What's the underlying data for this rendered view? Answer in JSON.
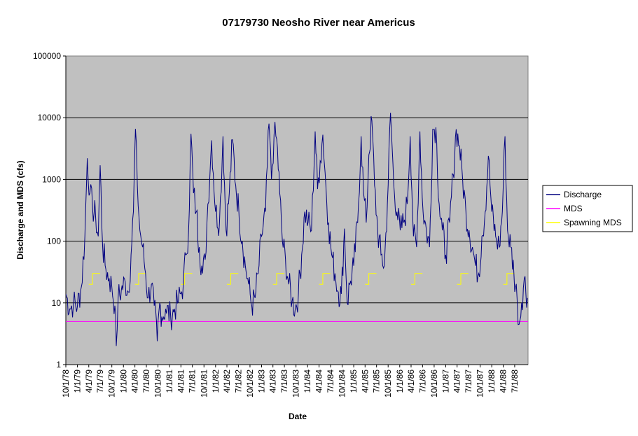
{
  "chart_data": {
    "type": "line",
    "title": "07179730 Neosho River near Americus",
    "xlabel": "Date",
    "ylabel": "Discharge and MDS (cfs)",
    "y_scale": "log",
    "ylim": [
      1,
      100000
    ],
    "y_ticks": [
      "1",
      "10",
      "100",
      "1000",
      "10000",
      "100000"
    ],
    "x_ticks": [
      "10/1/78",
      "1/1/79",
      "4/1/79",
      "7/1/79",
      "10/1/79",
      "1/1/80",
      "4/1/80",
      "7/1/80",
      "10/1/80",
      "1/1/81",
      "4/1/81",
      "7/1/81",
      "10/1/81",
      "1/1/82",
      "4/1/82",
      "7/1/82",
      "10/1/82",
      "1/1/83",
      "4/1/83",
      "7/1/83",
      "10/1/83",
      "1/1/84",
      "4/1/84",
      "7/1/84",
      "10/1/84",
      "1/1/85",
      "4/1/85",
      "7/1/85",
      "10/1/85",
      "1/1/86",
      "4/1/86",
      "7/1/86",
      "10/1/86",
      "1/1/87",
      "4/1/87",
      "7/1/87",
      "10/1/87",
      "1/1/88",
      "4/1/88",
      "7/1/88"
    ],
    "xlim": [
      "1978-10-01",
      "1988-10-15"
    ],
    "plot_background": "#c0c0c0",
    "grid": "horizontal",
    "legend_position": "right",
    "series": [
      {
        "name": "Discharge",
        "color": "#000080",
        "points": [
          [
            "1978-10-01",
            14
          ],
          [
            "1978-11-01",
            8
          ],
          [
            "1978-12-01",
            10
          ],
          [
            "1979-01-01",
            9
          ],
          [
            "1979-02-01",
            18
          ],
          [
            "1979-03-01",
            120
          ],
          [
            "1979-03-20",
            2200
          ],
          [
            "1979-04-10",
            600
          ],
          [
            "1979-05-01",
            350
          ],
          [
            "1979-05-25",
            250
          ],
          [
            "1979-06-15",
            120
          ],
          [
            "1979-06-30",
            1700
          ],
          [
            "1979-07-20",
            80
          ],
          [
            "1979-08-15",
            35
          ],
          [
            "1979-09-10",
            25
          ],
          [
            "1979-10-01",
            18
          ],
          [
            "1979-10-25",
            9
          ],
          [
            "1979-11-05",
            2
          ],
          [
            "1979-11-20",
            12
          ],
          [
            "1979-12-15",
            16
          ],
          [
            "1980-01-15",
            22
          ],
          [
            "1980-02-10",
            15
          ],
          [
            "1980-03-01",
            60
          ],
          [
            "1980-03-20",
            300
          ],
          [
            "1980-04-05",
            6600
          ],
          [
            "1980-04-20",
            800
          ],
          [
            "1980-05-10",
            150
          ],
          [
            "1980-06-01",
            80
          ],
          [
            "1980-06-25",
            30
          ],
          [
            "1980-07-15",
            12
          ],
          [
            "1980-08-10",
            20
          ],
          [
            "1980-09-01",
            9
          ],
          [
            "1980-09-25",
            2.4
          ],
          [
            "1980-10-15",
            10
          ],
          [
            "1980-11-01",
            6
          ],
          [
            "1980-12-01",
            8
          ],
          [
            "1981-01-10",
            6
          ],
          [
            "1981-02-10",
            8
          ],
          [
            "1981-03-05",
            10
          ],
          [
            "1981-04-01",
            14
          ],
          [
            "1981-04-20",
            20
          ],
          [
            "1981-05-10",
            60
          ],
          [
            "1981-06-01",
            150
          ],
          [
            "1981-06-20",
            5500
          ],
          [
            "1981-07-10",
            600
          ],
          [
            "1981-08-01",
            300
          ],
          [
            "1981-08-25",
            80
          ],
          [
            "1981-09-20",
            30
          ],
          [
            "1981-10-10",
            50
          ],
          [
            "1981-11-01",
            400
          ],
          [
            "1981-12-01",
            4300
          ],
          [
            "1982-01-01",
            300
          ],
          [
            "1982-02-01",
            200
          ],
          [
            "1982-03-01",
            5000
          ],
          [
            "1982-03-25",
            150
          ],
          [
            "1982-04-20",
            600
          ],
          [
            "1982-05-15",
            4400
          ],
          [
            "1982-06-10",
            800
          ],
          [
            "1982-07-05",
            300
          ],
          [
            "1982-08-01",
            100
          ],
          [
            "1982-08-25",
            40
          ],
          [
            "1982-09-20",
            20
          ],
          [
            "1982-10-15",
            9
          ],
          [
            "1982-11-10",
            12
          ],
          [
            "1982-12-05",
            30
          ],
          [
            "1983-01-01",
            120
          ],
          [
            "1983-02-01",
            300
          ],
          [
            "1983-03-01",
            8000
          ],
          [
            "1983-03-20",
            1000
          ],
          [
            "1983-04-10",
            5200
          ],
          [
            "1983-05-01",
            4500
          ],
          [
            "1983-05-25",
            600
          ],
          [
            "1983-06-15",
            100
          ],
          [
            "1983-07-10",
            50
          ],
          [
            "1983-08-05",
            20
          ],
          [
            "1983-09-01",
            11
          ],
          [
            "1983-09-25",
            8
          ],
          [
            "1983-10-20",
            14
          ],
          [
            "1983-11-15",
            60
          ],
          [
            "1983-12-10",
            300
          ],
          [
            "1984-01-05",
            200
          ],
          [
            "1984-02-01",
            150
          ],
          [
            "1984-03-01",
            6000
          ],
          [
            "1984-03-20",
            700
          ],
          [
            "1984-04-10",
            2000
          ],
          [
            "1984-05-01",
            5300
          ],
          [
            "1984-05-25",
            800
          ],
          [
            "1984-06-15",
            200
          ],
          [
            "1984-07-10",
            60
          ],
          [
            "1984-08-05",
            30
          ],
          [
            "1984-09-01",
            15
          ],
          [
            "1984-09-25",
            14
          ],
          [
            "1984-10-20",
            160
          ],
          [
            "1984-11-10",
            10
          ],
          [
            "1984-12-01",
            20
          ],
          [
            "1985-01-01",
            40
          ],
          [
            "1985-02-01",
            200
          ],
          [
            "1985-03-01",
            5000
          ],
          [
            "1985-03-20",
            600
          ],
          [
            "1985-04-10",
            200
          ],
          [
            "1985-05-01",
            2500
          ],
          [
            "1985-05-25",
            9000
          ],
          [
            "1985-06-15",
            800
          ],
          [
            "1985-07-10",
            150
          ],
          [
            "1985-08-05",
            60
          ],
          [
            "1985-09-01",
            40
          ],
          [
            "1985-09-25",
            400
          ],
          [
            "1985-10-20",
            12000
          ],
          [
            "1985-11-15",
            800
          ],
          [
            "1985-12-10",
            300
          ],
          [
            "1986-01-05",
            150
          ],
          [
            "1986-02-01",
            200
          ],
          [
            "1986-03-01",
            400
          ],
          [
            "1986-03-25",
            5000
          ],
          [
            "1986-04-20",
            120
          ],
          [
            "1986-05-15",
            80
          ],
          [
            "1986-06-10",
            6000
          ],
          [
            "1986-07-05",
            300
          ],
          [
            "1986-08-01",
            150
          ],
          [
            "1986-08-25",
            80
          ],
          [
            "1986-09-20",
            6500
          ],
          [
            "1986-10-15",
            7000
          ],
          [
            "1986-11-10",
            400
          ],
          [
            "1986-12-05",
            150
          ],
          [
            "1987-01-01",
            60
          ],
          [
            "1987-02-01",
            200
          ],
          [
            "1987-03-01",
            1200
          ],
          [
            "1987-03-25",
            6500
          ],
          [
            "1987-04-20",
            3500
          ],
          [
            "1987-05-15",
            1000
          ],
          [
            "1987-06-10",
            300
          ],
          [
            "1987-07-05",
            150
          ],
          [
            "1987-08-01",
            80
          ],
          [
            "1987-08-25",
            40
          ],
          [
            "1987-09-20",
            30
          ],
          [
            "1987-10-15",
            120
          ],
          [
            "1987-11-10",
            300
          ],
          [
            "1987-12-05",
            2400
          ],
          [
            "1988-01-01",
            300
          ],
          [
            "1988-02-01",
            120
          ],
          [
            "1988-03-01",
            80
          ],
          [
            "1988-03-25",
            300
          ],
          [
            "1988-04-15",
            5000
          ],
          [
            "1988-05-05",
            150
          ],
          [
            "1988-06-01",
            80
          ],
          [
            "1988-06-25",
            30
          ],
          [
            "1988-07-20",
            12
          ],
          [
            "1988-08-05",
            4.5
          ],
          [
            "1988-08-25",
            10
          ],
          [
            "1988-09-15",
            25
          ],
          [
            "1988-10-10",
            12
          ]
        ]
      },
      {
        "name": "MDS",
        "color": "#ff00ff",
        "points": [
          [
            "1978-10-01",
            5
          ],
          [
            "1988-10-15",
            5
          ]
        ]
      },
      {
        "name": "Spawning MDS",
        "color": "#ffff00",
        "segments": [
          {
            "start": "1979-04-01",
            "end": "1979-06-30",
            "low": 20,
            "high": 30
          },
          {
            "start": "1980-04-01",
            "end": "1980-06-30",
            "low": 20,
            "high": 30
          },
          {
            "start": "1981-04-01",
            "end": "1981-06-30",
            "low": 20,
            "high": 30
          },
          {
            "start": "1982-04-01",
            "end": "1982-06-30",
            "low": 20,
            "high": 30
          },
          {
            "start": "1983-04-01",
            "end": "1983-06-30",
            "low": 20,
            "high": 30
          },
          {
            "start": "1984-04-01",
            "end": "1984-06-30",
            "low": 20,
            "high": 30
          },
          {
            "start": "1985-04-01",
            "end": "1985-06-30",
            "low": 20,
            "high": 30
          },
          {
            "start": "1986-04-01",
            "end": "1986-06-30",
            "low": 20,
            "high": 30
          },
          {
            "start": "1987-04-01",
            "end": "1987-06-30",
            "low": 20,
            "high": 30
          },
          {
            "start": "1988-04-01",
            "end": "1988-06-30",
            "low": 20,
            "high": 30
          }
        ]
      }
    ]
  }
}
